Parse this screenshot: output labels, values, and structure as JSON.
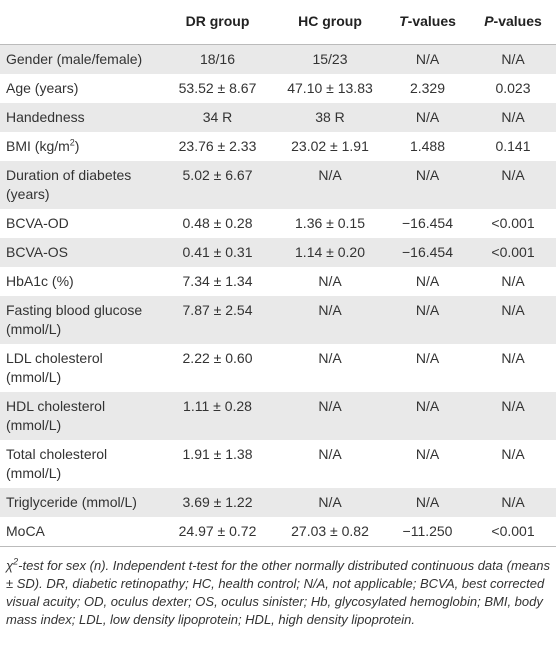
{
  "table": {
    "header": [
      "DR group",
      "HC group",
      {
        "italic": "T",
        "after": "-values"
      },
      {
        "italic": "P",
        "after": "-values"
      }
    ],
    "rows": [
      [
        "Gender (male/female)",
        "18/16",
        "15/23",
        "N/A",
        "N/A"
      ],
      [
        "Age (years)",
        "53.52 ± 8.67",
        "47.10 ± 13.83",
        "2.329",
        "0.023"
      ],
      [
        "Handedness",
        "34 R",
        "38 R",
        "N/A",
        "N/A"
      ],
      [
        {
          "text": "BMI (kg/m",
          "sup": "2",
          "after": ")"
        },
        "23.76 ± 2.33",
        "23.02 ± 1.91",
        "1.488",
        "0.141"
      ],
      [
        "Duration of diabetes (years)",
        "5.02 ± 6.67",
        "N/A",
        "N/A",
        "N/A"
      ],
      [
        "BCVA-OD",
        "0.48 ± 0.28",
        "1.36 ± 0.15",
        "−16.454",
        "<0.001"
      ],
      [
        "BCVA-OS",
        "0.41 ± 0.31",
        "1.14 ± 0.20",
        "−16.454",
        "<0.001"
      ],
      [
        "HbA1c (%)",
        "7.34 ± 1.34",
        "N/A",
        "N/A",
        "N/A"
      ],
      [
        "Fasting blood glucose (mmol/L)",
        "7.87 ± 2.54",
        "N/A",
        "N/A",
        "N/A"
      ],
      [
        "LDL cholesterol (mmol/L)",
        "2.22 ± 0.60",
        "N/A",
        "N/A",
        "N/A"
      ],
      [
        "HDL cholesterol (mmol/L)",
        "1.11 ± 0.28",
        "N/A",
        "N/A",
        "N/A"
      ],
      [
        "Total cholesterol (mmol/L)",
        "1.91 ± 1.38",
        "N/A",
        "N/A",
        "N/A"
      ],
      [
        "Triglyceride (mmol/L)",
        "3.69 ± 1.22",
        "N/A",
        "N/A",
        "N/A"
      ],
      [
        "MoCA",
        "24.97 ± 0.72",
        "27.03 ± 0.82",
        "−11.250",
        "<0.001"
      ]
    ],
    "footnote": {
      "text": "χ",
      "sup": "2",
      "after": "-test for sex (n). Independent t-test for the other normally distributed continuous data (means ± SD). DR, diabetic retinopathy; HC, health control; N/A, not applicable; BCVA, best corrected visual acuity; OD, oculus dexter; OS, oculus sinister; Hb, glycosylated hemoglobin; BMI, body mass index; LDL, low density lipoprotein; HDL, high density lipoprotein."
    }
  }
}
